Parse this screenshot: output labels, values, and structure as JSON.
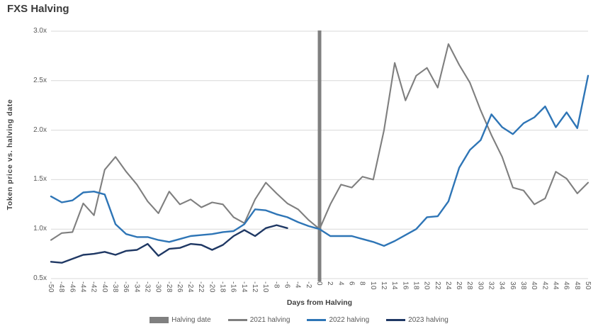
{
  "title": "FXS Halving",
  "axes": {
    "x_title": "Days from Halving",
    "y_title": "Token price vs. halving date",
    "y_tick_labels": [
      "3.0x",
      "2.5x",
      "2.0x",
      "1.5x",
      "1.0x",
      "0.5x"
    ]
  },
  "colors": {
    "gridline": "#D9D9D9",
    "halving_bar": "#808080",
    "s2021": "#7F7F7F",
    "s2022": "#2E75B6",
    "s2023": "#1F3864",
    "tick_text": "#595959",
    "title_text": "#3b3b3b"
  },
  "legend": {
    "items": [
      {
        "label": "Halving date",
        "swatch": "bar",
        "color": "#808080"
      },
      {
        "label": "2021 halving",
        "swatch": "line",
        "color": "#7F7F7F"
      },
      {
        "label": "2022 halving",
        "swatch": "line",
        "color": "#2E75B6"
      },
      {
        "label": "2023 halving",
        "swatch": "line",
        "color": "#1F3864"
      }
    ]
  },
  "chart_data": {
    "type": "line",
    "title": "FXS Halving",
    "xlabel": "Days from Halving",
    "ylabel": "Token price vs. halving date",
    "xlim": [
      -50,
      50
    ],
    "ylim": [
      0.5,
      3.0
    ],
    "y_ticks": [
      3.0,
      2.5,
      2.0,
      1.5,
      1.0,
      0.5
    ],
    "x_tick_step": 2,
    "grid": "horizontal",
    "legend_position": "bottom",
    "halving_line": {
      "x": 0,
      "label": "Halving date",
      "color": "#808080"
    },
    "x": [
      -50,
      -48,
      -46,
      -44,
      -42,
      -40,
      -38,
      -36,
      -34,
      -32,
      -30,
      -28,
      -26,
      -24,
      -22,
      -20,
      -18,
      -16,
      -14,
      -12,
      -10,
      -8,
      -6,
      -4,
      -2,
      0,
      2,
      4,
      6,
      8,
      10,
      12,
      14,
      16,
      18,
      20,
      22,
      24,
      26,
      28,
      30,
      32,
      34,
      36,
      38,
      40,
      42,
      44,
      46,
      48,
      50
    ],
    "series": [
      {
        "name": "2021 halving",
        "color": "#7F7F7F",
        "values": [
          0.89,
          0.96,
          0.97,
          1.26,
          1.14,
          1.6,
          1.73,
          1.58,
          1.45,
          1.28,
          1.16,
          1.38,
          1.25,
          1.3,
          1.22,
          1.27,
          1.25,
          1.12,
          1.06,
          1.3,
          1.47,
          1.36,
          1.26,
          1.2,
          1.09,
          1.0,
          1.25,
          1.45,
          1.42,
          1.53,
          1.5,
          2.0,
          2.68,
          2.3,
          2.55,
          2.63,
          2.43,
          2.87,
          2.66,
          2.48,
          2.2,
          1.95,
          1.73,
          1.42,
          1.39,
          1.25,
          1.31,
          1.58,
          1.51,
          1.36,
          1.47
        ]
      },
      {
        "name": "2022 halving",
        "color": "#2E75B6",
        "values": [
          1.33,
          1.27,
          1.29,
          1.37,
          1.38,
          1.35,
          1.05,
          0.95,
          0.92,
          0.92,
          0.89,
          0.87,
          0.9,
          0.93,
          0.94,
          0.95,
          0.97,
          0.98,
          1.05,
          1.2,
          1.19,
          1.15,
          1.12,
          1.07,
          1.03,
          1.0,
          0.93,
          0.93,
          0.93,
          0.9,
          0.87,
          0.83,
          0.88,
          0.94,
          1.0,
          1.12,
          1.13,
          1.28,
          1.62,
          1.8,
          1.9,
          2.16,
          2.03,
          1.96,
          2.07,
          2.13,
          2.24,
          2.03,
          2.18,
          2.02,
          2.55
        ]
      },
      {
        "name": "2023 halving",
        "color": "#1F3864",
        "values": [
          0.67,
          0.66,
          0.7,
          0.74,
          0.75,
          0.77,
          0.74,
          0.78,
          0.79,
          0.85,
          0.73,
          0.8,
          0.81,
          0.85,
          0.84,
          0.79,
          0.84,
          0.93,
          0.99,
          0.93,
          1.01,
          1.04,
          1.01,
          null,
          null,
          null,
          null,
          null,
          null,
          null,
          null,
          null,
          null,
          null,
          null,
          null,
          null,
          null,
          null,
          null,
          null,
          null,
          null,
          null,
          null,
          null,
          null,
          null,
          null,
          null,
          null
        ]
      }
    ]
  }
}
